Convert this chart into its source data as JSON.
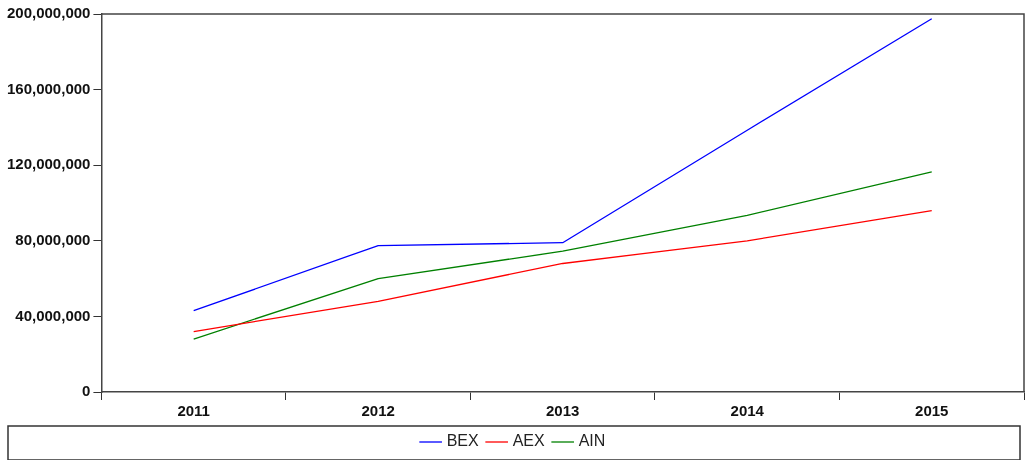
{
  "chart_data": {
    "type": "line",
    "categories": [
      "2011",
      "2012",
      "2013",
      "2014",
      "2015"
    ],
    "series": [
      {
        "name": "BEX",
        "color": "#0000ff",
        "values": [
          43000000,
          77500000,
          79000000,
          138500000,
          197500000
        ]
      },
      {
        "name": "AEX",
        "color": "#ff0000",
        "values": [
          32000000,
          48000000,
          68000000,
          80000000,
          96000000
        ]
      },
      {
        "name": "AIN",
        "color": "#008000",
        "values": [
          28000000,
          60000000,
          74500000,
          93500000,
          116500000
        ]
      }
    ],
    "ylim": [
      0,
      200000000
    ],
    "yticks": [
      {
        "value": 0,
        "label": "0"
      },
      {
        "value": 40000000,
        "label": "40,000,000"
      },
      {
        "value": 80000000,
        "label": "80,000,000"
      },
      {
        "value": 120000000,
        "label": "120,000,000"
      },
      {
        "value": 160000000,
        "label": "160,000,000"
      },
      {
        "value": 200000000,
        "label": "200,000,000"
      }
    ],
    "grid": false,
    "legend": "bottom",
    "marker": "none",
    "line_style": "solid"
  }
}
